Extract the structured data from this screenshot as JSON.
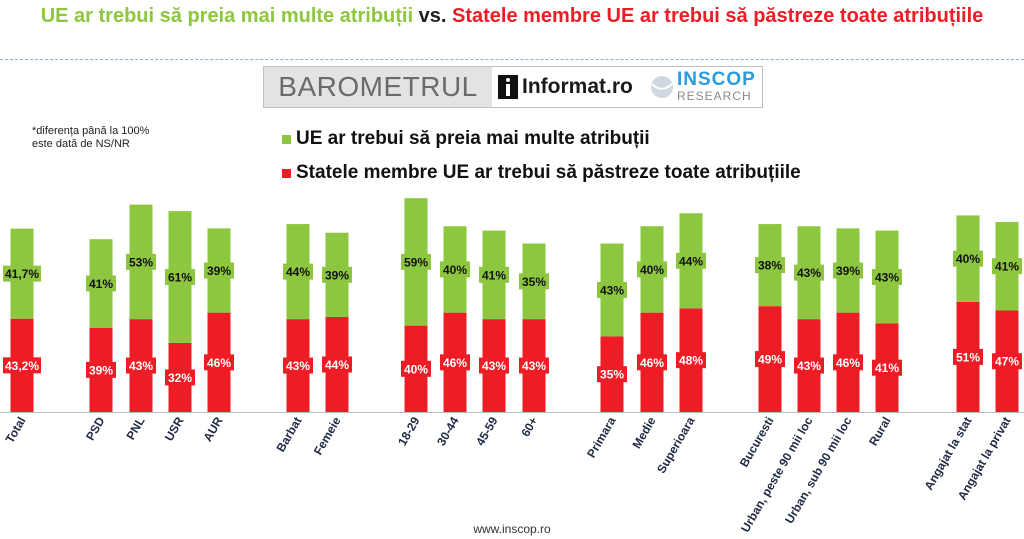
{
  "title": {
    "part1": "UE ar trebui să preia mai multe atribuții",
    "vs": "vs.",
    "part2": "Statele membre UE ar trebui să păstreze toate atribuțiile"
  },
  "logos": {
    "barometer": "BAROMETRUL",
    "informat": "Informat.ro",
    "inscop": "INSCOP",
    "inscop_sub": "RESEARCH"
  },
  "footnote": "*diferența până la 100%\neste dată de NS/NR",
  "footer": "www.inscop.ro",
  "colors": {
    "green": "#8dc63f",
    "red": "#ee1c25"
  },
  "chart_data": {
    "type": "bar",
    "stacked": true,
    "legend_position": "top",
    "grid": false,
    "categories": [
      "Total",
      "PSD",
      "PNL",
      "USR",
      "AUR",
      "Barbat",
      "Femeie",
      "18-29",
      "30-44",
      "45-59",
      "60+",
      "Primara",
      "Medie",
      "Superioara",
      "Bucuresti",
      "Urban, peste 90 mii loc",
      "Urban, sub 90 mii loc",
      "Rural",
      "Angajat la stat",
      "Angajat la privat"
    ],
    "groups": [
      [
        0
      ],
      [
        1,
        2,
        3,
        4
      ],
      [
        5,
        6
      ],
      [
        7,
        8,
        9,
        10
      ],
      [
        11,
        12,
        13
      ],
      [
        14,
        15,
        16,
        17
      ],
      [
        18,
        19
      ]
    ],
    "series": [
      {
        "name": "Statele membre UE ar trebui să păstreze toate atribuțiile",
        "color": "#ee1c25",
        "values": [
          43.2,
          39,
          43,
          32,
          46,
          43,
          44,
          40,
          46,
          43,
          43,
          35,
          46,
          48,
          49,
          43,
          46,
          41,
          51,
          47
        ],
        "labels": [
          "43,2%",
          "39%",
          "43%",
          "32%",
          "46%",
          "43%",
          "44%",
          "40%",
          "46%",
          "43%",
          "43%",
          "35%",
          "46%",
          "48%",
          "49%",
          "43%",
          "46%",
          "41%",
          "51%",
          "47%"
        ]
      },
      {
        "name": "UE ar trebui să preia mai multe atribuții",
        "color": "#8dc63f",
        "values": [
          41.7,
          41,
          53,
          61,
          39,
          44,
          39,
          59,
          40,
          41,
          35,
          43,
          40,
          44,
          38,
          43,
          39,
          43,
          40,
          41
        ],
        "labels": [
          "41,7%",
          "41%",
          "53%",
          "61%",
          "39%",
          "44%",
          "39%",
          "59%",
          "40%",
          "41%",
          "35%",
          "43%",
          "40%",
          "44%",
          "38%",
          "43%",
          "39%",
          "43%",
          "40%",
          "41%"
        ]
      }
    ]
  }
}
